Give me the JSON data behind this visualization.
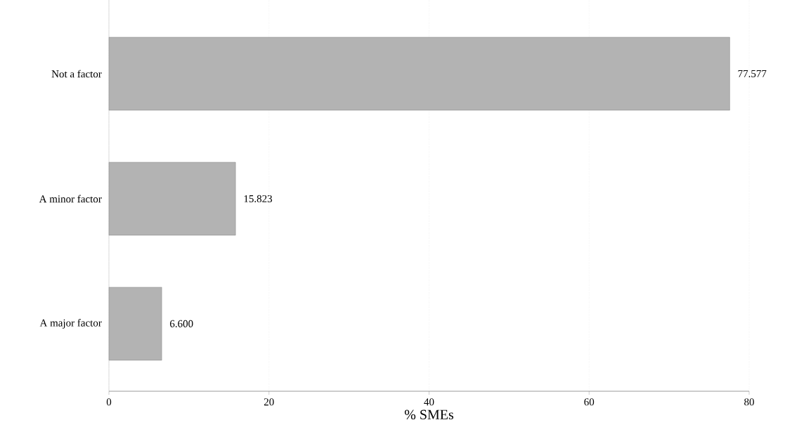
{
  "chart_data": {
    "type": "bar",
    "orientation": "horizontal",
    "xlabel": "% SMEs",
    "categories": [
      "Not a factor",
      "A minor factor",
      "A major factor"
    ],
    "values": [
      77.577,
      15.823,
      6.6
    ],
    "value_labels": [
      "77.577",
      "15.823",
      "6.600"
    ],
    "color": "#b3b3b3",
    "xlim": [
      0,
      80
    ],
    "xticks": [
      0,
      20,
      40,
      60,
      80
    ],
    "grid": "x"
  }
}
